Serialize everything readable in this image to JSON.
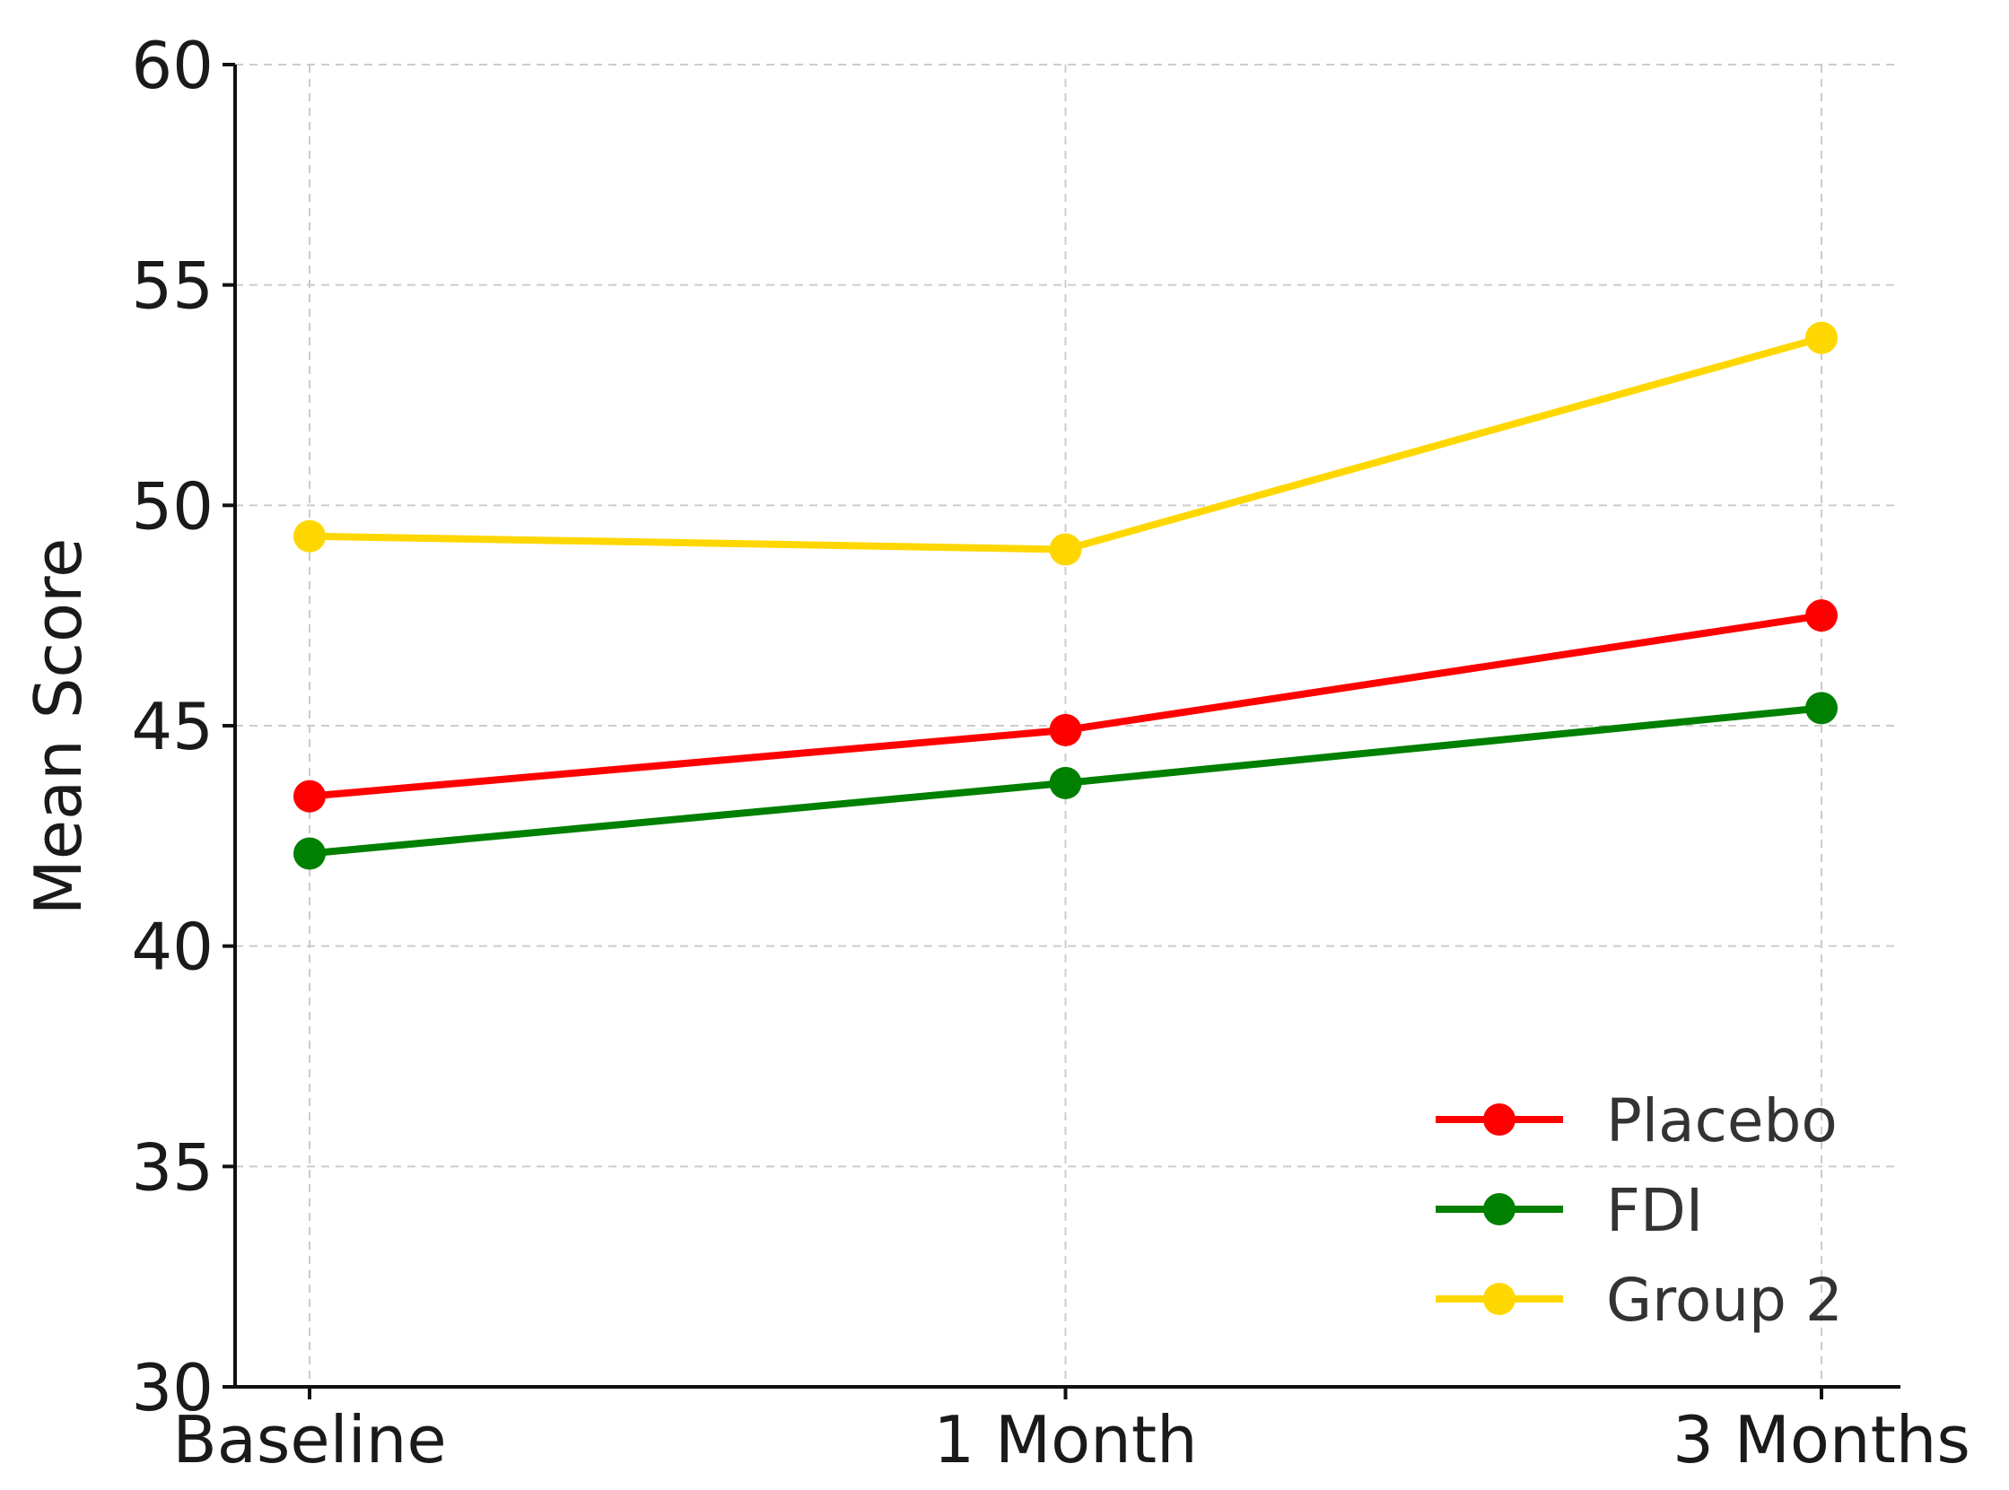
{
  "chart_data": {
    "type": "line",
    "categories": [
      "Baseline",
      "1 Month",
      "3 Months"
    ],
    "ylabel": "Mean Score",
    "xlabel": "",
    "ylim": [
      30,
      60
    ],
    "yticks": [
      30,
      35,
      40,
      45,
      50,
      55,
      60
    ],
    "grid": true,
    "legend_position": "bottom-right",
    "series": [
      {
        "name": "Placebo",
        "color": "#ff0000",
        "values": [
          43.4,
          44.9,
          47.5
        ]
      },
      {
        "name": "FDI",
        "color": "#008000",
        "values": [
          42.1,
          43.7,
          45.4
        ]
      },
      {
        "name": "Group 2",
        "color": "#ffd700",
        "values": [
          49.3,
          49.0,
          53.8
        ]
      }
    ]
  }
}
